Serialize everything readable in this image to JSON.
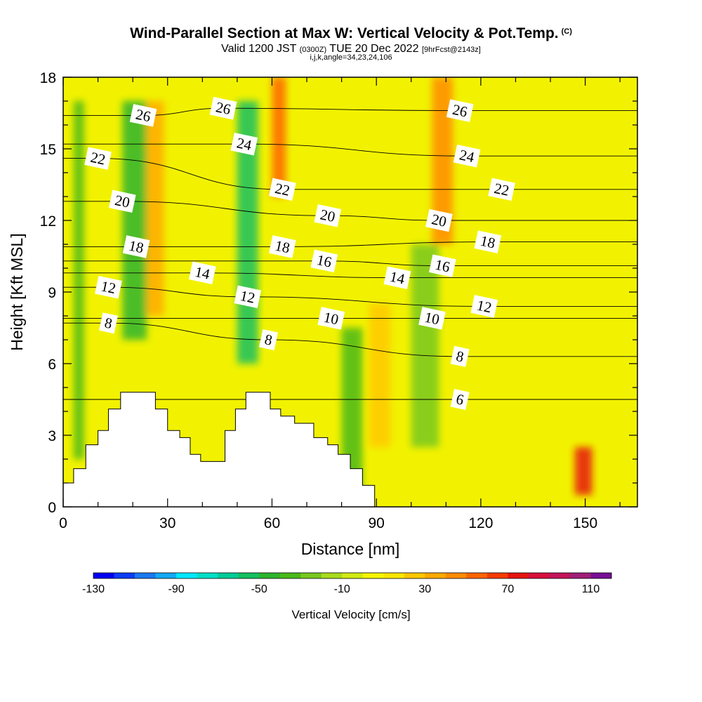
{
  "header": {
    "title": "Wind-Parallel Section at Max W: Vertical Velocity & Pot.Temp.",
    "copyright": "(C)",
    "valid_prefix": "Valid 1200 JST",
    "valid_utc": "(0300Z)",
    "valid_date": "TUE 20 Dec 2022",
    "forecast_tag": "[9hrFcst@2143z]",
    "indices": "i,j,k,angle=34,23,24,106"
  },
  "chart_data": {
    "type": "heatmap",
    "title": "Wind-Parallel Section at Max W: Vertical Velocity & Pot.Temp.",
    "xlabel": "Distance [nm]",
    "ylabel": "Height [Kft MSL]",
    "xlim": [
      0,
      165
    ],
    "ylim": [
      0,
      18
    ],
    "x_ticks": [
      0,
      30,
      60,
      90,
      120,
      150
    ],
    "y_ticks": [
      0,
      3,
      6,
      9,
      12,
      15,
      18
    ],
    "colorbar": {
      "title": "Vertical Velocity [cm/s]",
      "tick_labels": [
        -130,
        -90,
        -50,
        -10,
        30,
        70,
        110
      ],
      "levels": [
        -130,
        -120,
        -110,
        -100,
        -90,
        -80,
        -70,
        -60,
        -50,
        -40,
        -30,
        -20,
        -10,
        0,
        10,
        20,
        30,
        40,
        50,
        60,
        70,
        80,
        90,
        100,
        110,
        120
      ],
      "colors": [
        "#0000f2",
        "#0d3cf5",
        "#1a78f2",
        "#12a9f4",
        "#00e8ff",
        "#00e0c8",
        "#00cc99",
        "#14c060",
        "#2db42e",
        "#4ab919",
        "#78c81e",
        "#a8dc1e",
        "#d2eb14",
        "#f5f500",
        "#ffe600",
        "#ffc800",
        "#ffaa00",
        "#ff8c00",
        "#ff6400",
        "#f53c00",
        "#e6140f",
        "#d70f3c",
        "#c3145a",
        "#a01e78",
        "#780f96"
      ]
    },
    "velocity_cells": [
      {
        "x": [
          3,
          6
        ],
        "y": [
          2,
          17
        ],
        "w": -40
      },
      {
        "x": [
          17,
          24
        ],
        "y": [
          7,
          17
        ],
        "w": -50
      },
      {
        "x": [
          24,
          29
        ],
        "y": [
          8,
          17
        ],
        "w": 30
      },
      {
        "x": [
          50,
          56
        ],
        "y": [
          6,
          17
        ],
        "w": -60
      },
      {
        "x": [
          60,
          64
        ],
        "y": [
          13,
          18
        ],
        "w": 50
      },
      {
        "x": [
          80,
          86
        ],
        "y": [
          0.5,
          7.5
        ],
        "w": -40
      },
      {
        "x": [
          88,
          94
        ],
        "y": [
          2.5,
          8.5
        ],
        "w": 25
      },
      {
        "x": [
          100,
          108
        ],
        "y": [
          2.5,
          11
        ],
        "w": -30
      },
      {
        "x": [
          106,
          112
        ],
        "y": [
          11,
          18
        ],
        "w": 40
      },
      {
        "x": [
          147,
          152
        ],
        "y": [
          0.5,
          2.5
        ],
        "w": 70
      }
    ],
    "theta_contours": [
      {
        "label": "6",
        "label_at": [
          114,
          4.5
        ]
      },
      {
        "label": "8",
        "label_at": [
          13,
          7.7
        ]
      },
      {
        "label": "8",
        "label_at": [
          59,
          7.0
        ]
      },
      {
        "label": "8",
        "label_at": [
          114,
          6.3
        ]
      },
      {
        "label": "10",
        "label_at": [
          77,
          7.9
        ]
      },
      {
        "label": "10",
        "label_at": [
          106,
          7.9
        ]
      },
      {
        "label": "12",
        "label_at": [
          13,
          9.2
        ]
      },
      {
        "label": "12",
        "label_at": [
          53,
          8.8
        ]
      },
      {
        "label": "12",
        "label_at": [
          121,
          8.4
        ]
      },
      {
        "label": "14",
        "label_at": [
          40,
          9.8
        ]
      },
      {
        "label": "14",
        "label_at": [
          96,
          9.6
        ]
      },
      {
        "label": "16",
        "label_at": [
          75,
          10.3
        ]
      },
      {
        "label": "16",
        "label_at": [
          109,
          10.1
        ]
      },
      {
        "label": "18",
        "label_at": [
          21,
          10.9
        ]
      },
      {
        "label": "18",
        "label_at": [
          63,
          10.9
        ]
      },
      {
        "label": "18",
        "label_at": [
          122,
          11.1
        ]
      },
      {
        "label": "20",
        "label_at": [
          17,
          12.8
        ]
      },
      {
        "label": "20",
        "label_at": [
          76,
          12.2
        ]
      },
      {
        "label": "20",
        "label_at": [
          108,
          12.0
        ]
      },
      {
        "label": "22",
        "label_at": [
          10,
          14.6
        ]
      },
      {
        "label": "22",
        "label_at": [
          63,
          13.3
        ]
      },
      {
        "label": "22",
        "label_at": [
          126,
          13.3
        ]
      },
      {
        "label": "24",
        "label_at": [
          52,
          15.2
        ]
      },
      {
        "label": "24",
        "label_at": [
          116,
          14.7
        ]
      },
      {
        "label": "26",
        "label_at": [
          23,
          16.4
        ]
      },
      {
        "label": "26",
        "label_at": [
          46,
          16.7
        ]
      },
      {
        "label": "26",
        "label_at": [
          114,
          16.6
        ]
      }
    ],
    "terrain": [
      [
        0,
        1
      ],
      [
        3,
        1
      ],
      [
        3,
        1.6
      ],
      [
        6.5,
        1.6
      ],
      [
        6.5,
        2.6
      ],
      [
        10,
        2.6
      ],
      [
        10,
        3.2
      ],
      [
        13,
        3.2
      ],
      [
        13,
        4.1
      ],
      [
        16.5,
        4.1
      ],
      [
        16.5,
        4.8
      ],
      [
        26.5,
        4.8
      ],
      [
        26.5,
        4.1
      ],
      [
        30,
        4.1
      ],
      [
        30,
        3.2
      ],
      [
        33.5,
        3.2
      ],
      [
        33.5,
        2.9
      ],
      [
        36.5,
        2.9
      ],
      [
        36.5,
        2.2
      ],
      [
        39.5,
        2.2
      ],
      [
        39.5,
        1.9
      ],
      [
        46.5,
        1.9
      ],
      [
        46.5,
        3.2
      ],
      [
        49.5,
        3.2
      ],
      [
        49.5,
        4.1
      ],
      [
        52.5,
        4.1
      ],
      [
        52.5,
        4.8
      ],
      [
        59.5,
        4.8
      ],
      [
        59.5,
        4.1
      ],
      [
        62.5,
        4.1
      ],
      [
        62.5,
        3.8
      ],
      [
        66.5,
        3.8
      ],
      [
        66.5,
        3.5
      ],
      [
        72,
        3.5
      ],
      [
        72,
        2.9
      ],
      [
        76,
        2.9
      ],
      [
        76,
        2.6
      ],
      [
        79,
        2.6
      ],
      [
        79,
        2.2
      ],
      [
        82.5,
        2.2
      ],
      [
        82.5,
        1.6
      ],
      [
        86,
        1.6
      ],
      [
        86,
        0.9
      ],
      [
        89.5,
        0.9
      ],
      [
        89.5,
        0
      ],
      [
        0,
        0
      ]
    ]
  }
}
